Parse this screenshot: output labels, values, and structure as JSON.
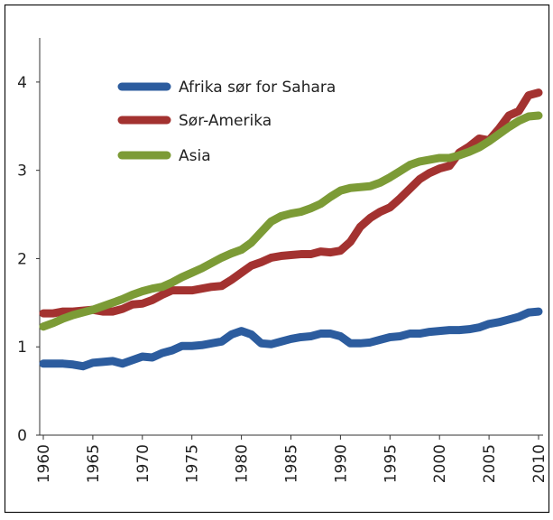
{
  "chart_data": {
    "type": "line",
    "x": [
      1960,
      1961,
      1962,
      1963,
      1964,
      1965,
      1966,
      1967,
      1968,
      1969,
      1970,
      1971,
      1972,
      1973,
      1974,
      1975,
      1976,
      1977,
      1978,
      1979,
      1980,
      1981,
      1982,
      1983,
      1984,
      1985,
      1986,
      1987,
      1988,
      1989,
      1990,
      1991,
      1992,
      1993,
      1994,
      1995,
      1996,
      1997,
      1998,
      1999,
      2000,
      2001,
      2002,
      2003,
      2004,
      2005,
      2006,
      2007,
      2008,
      2009,
      2010
    ],
    "series": [
      {
        "name": "Afrika sør for Sahara",
        "color": "#2c5c9e",
        "values": [
          0.81,
          0.81,
          0.81,
          0.8,
          0.78,
          0.82,
          0.83,
          0.84,
          0.81,
          0.85,
          0.89,
          0.88,
          0.93,
          0.96,
          1.01,
          1.01,
          1.02,
          1.04,
          1.06,
          1.14,
          1.18,
          1.14,
          1.04,
          1.03,
          1.06,
          1.09,
          1.11,
          1.12,
          1.15,
          1.15,
          1.12,
          1.04,
          1.04,
          1.05,
          1.08,
          1.11,
          1.12,
          1.15,
          1.15,
          1.17,
          1.18,
          1.19,
          1.19,
          1.2,
          1.22,
          1.26,
          1.28,
          1.31,
          1.34,
          1.39,
          1.4
        ]
      },
      {
        "name": "Sør-Amerika",
        "color": "#a33230",
        "values": [
          1.38,
          1.38,
          1.4,
          1.4,
          1.41,
          1.42,
          1.4,
          1.4,
          1.43,
          1.48,
          1.49,
          1.53,
          1.59,
          1.64,
          1.64,
          1.64,
          1.66,
          1.68,
          1.69,
          1.76,
          1.84,
          1.92,
          1.96,
          2.01,
          2.03,
          2.04,
          2.05,
          2.05,
          2.08,
          2.07,
          2.09,
          2.19,
          2.36,
          2.46,
          2.53,
          2.58,
          2.68,
          2.79,
          2.9,
          2.97,
          3.02,
          3.05,
          3.2,
          3.27,
          3.36,
          3.34,
          3.47,
          3.62,
          3.67,
          3.85,
          3.88
        ]
      },
      {
        "name": "Asia",
        "color": "#7c9b36",
        "values": [
          1.23,
          1.27,
          1.32,
          1.36,
          1.39,
          1.42,
          1.46,
          1.5,
          1.54,
          1.59,
          1.63,
          1.66,
          1.68,
          1.73,
          1.79,
          1.84,
          1.89,
          1.95,
          2.01,
          2.06,
          2.1,
          2.18,
          2.3,
          2.42,
          2.48,
          2.51,
          2.53,
          2.57,
          2.62,
          2.7,
          2.77,
          2.8,
          2.81,
          2.82,
          2.86,
          2.92,
          2.99,
          3.06,
          3.1,
          3.12,
          3.14,
          3.14,
          3.17,
          3.21,
          3.26,
          3.33,
          3.41,
          3.49,
          3.56,
          3.61,
          3.62
        ]
      }
    ],
    "xlim": [
      1960,
      2010
    ],
    "xticks": [
      1960,
      1965,
      1970,
      1975,
      1980,
      1985,
      1990,
      1995,
      2000,
      2005,
      2010
    ],
    "ylim": [
      0,
      4.5
    ],
    "yticks": [
      0,
      1,
      2,
      3,
      4
    ],
    "legend": "upper-left"
  }
}
